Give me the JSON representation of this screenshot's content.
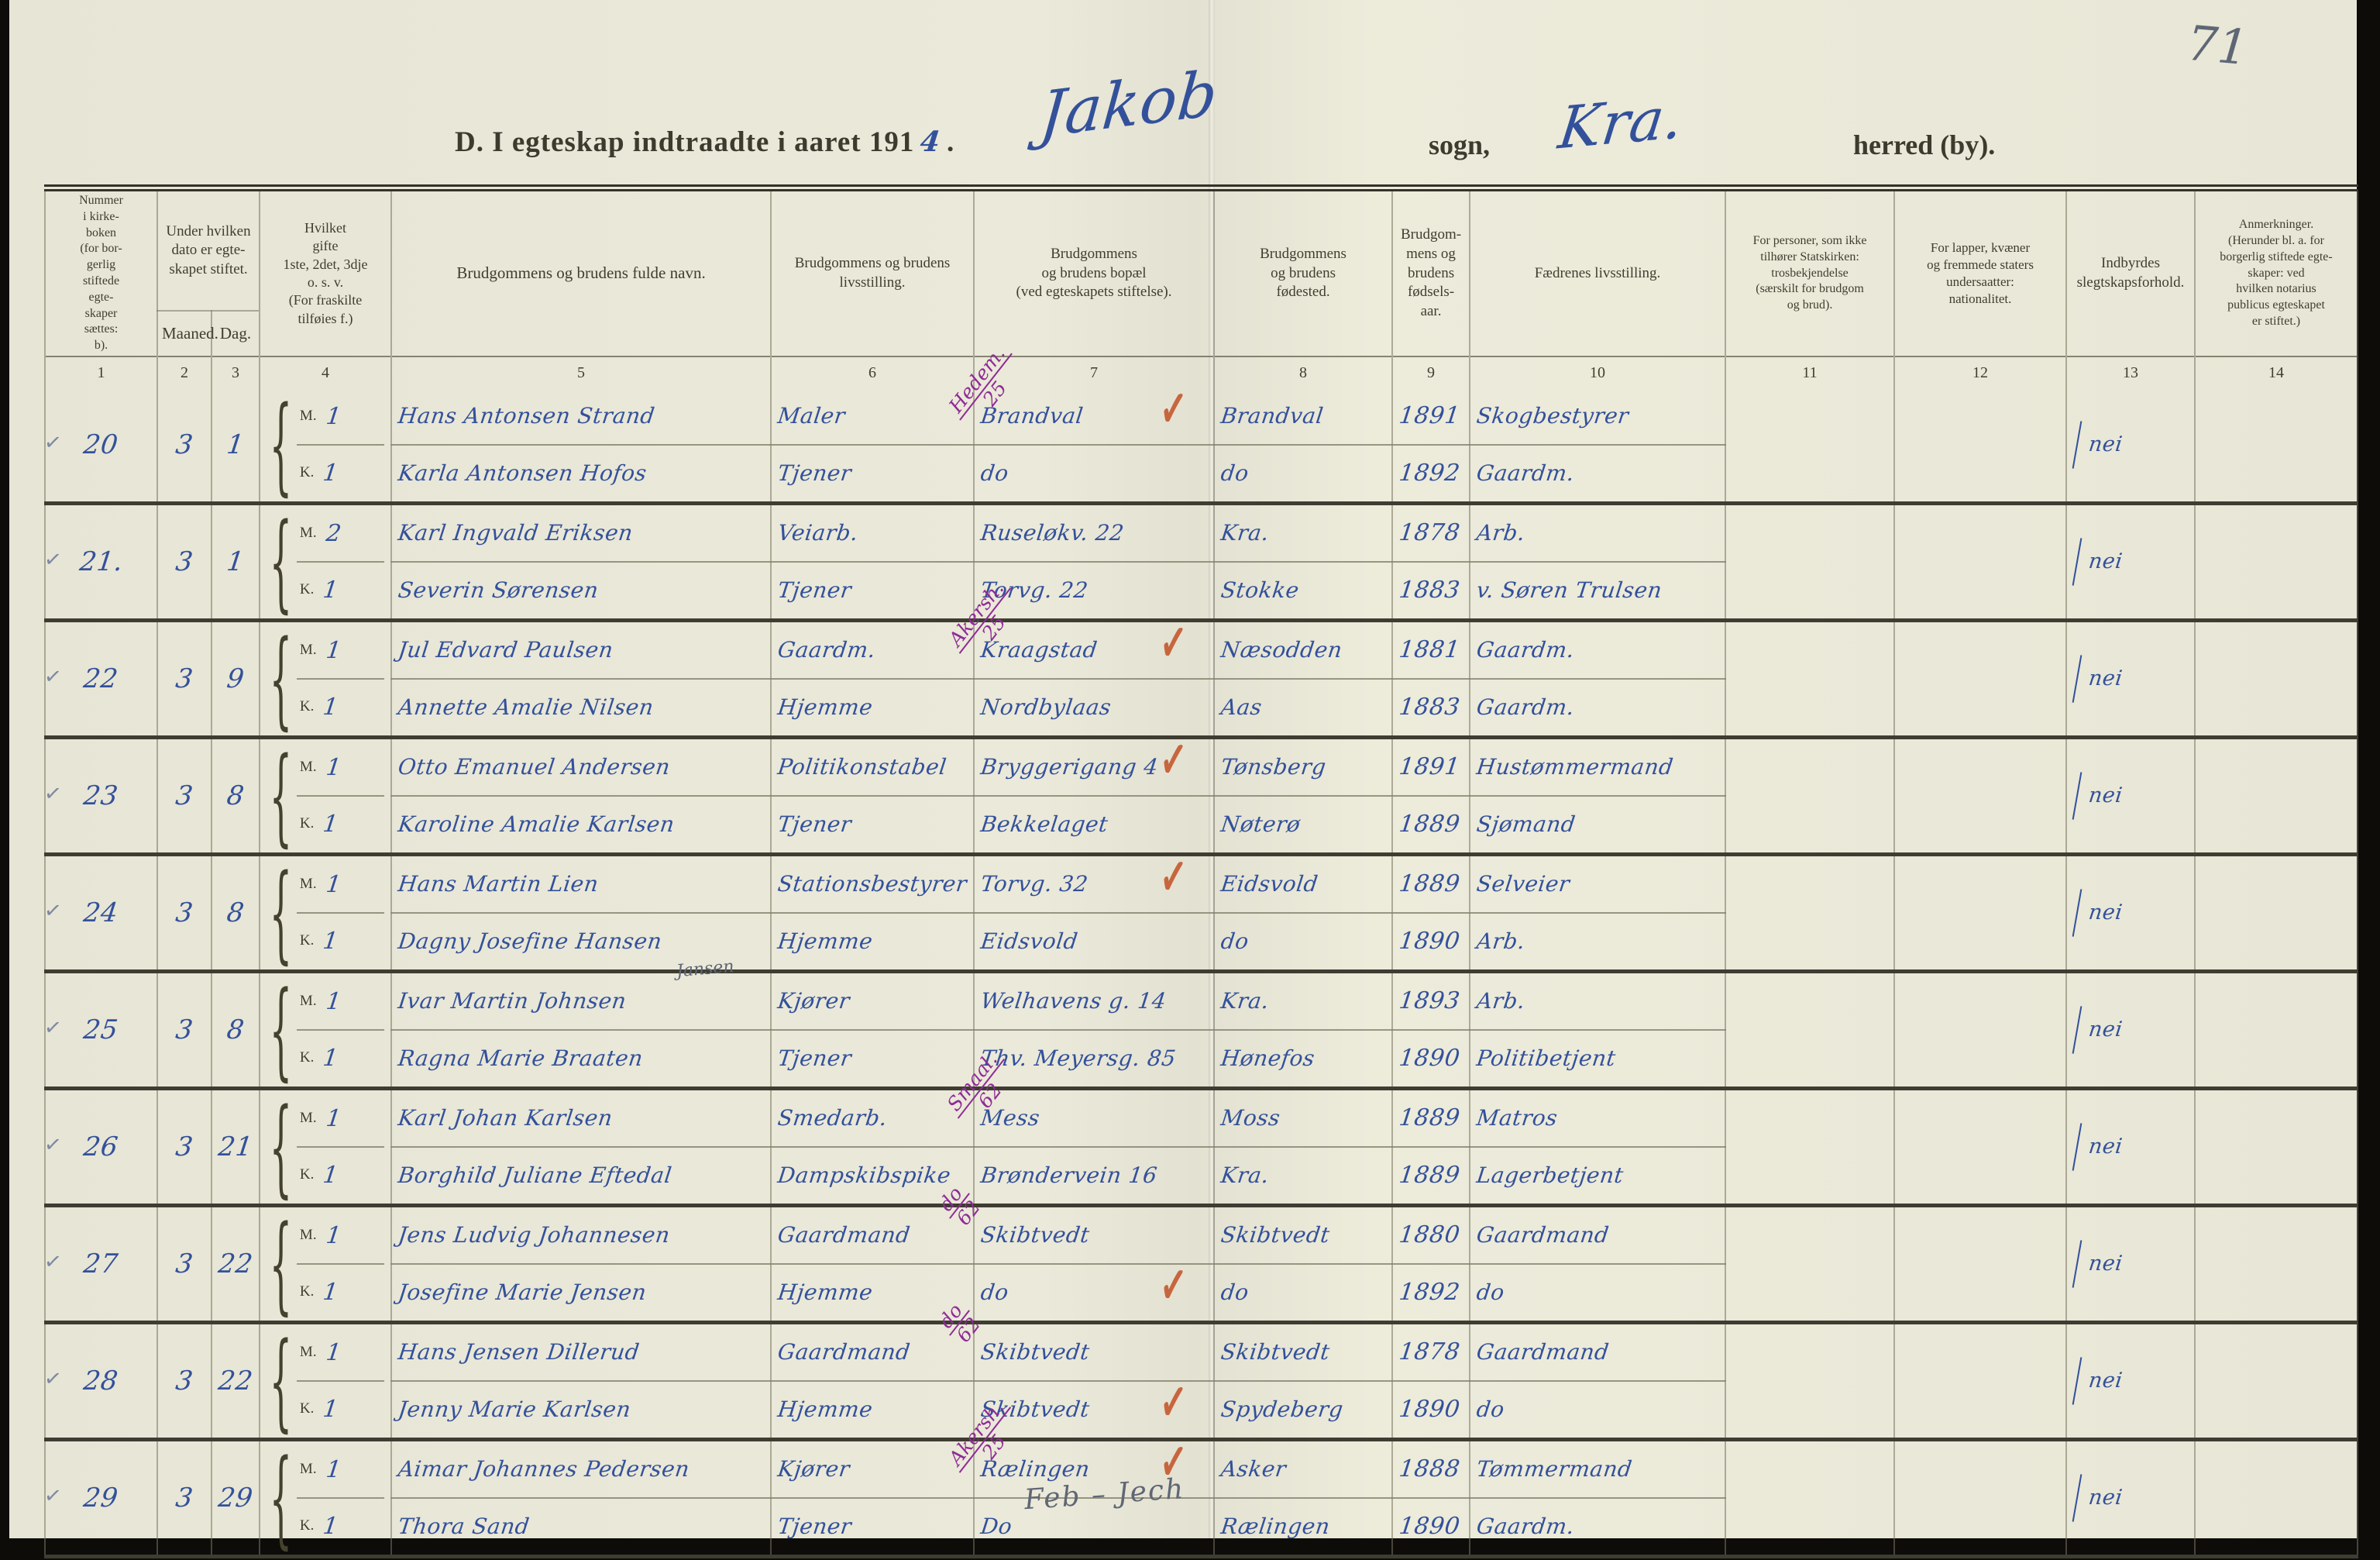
{
  "page": {
    "corner_number": "71",
    "title_prefix": "D.  I egteskap indtraadte i aaret 191",
    "title_year_hw": "4",
    "title_suffix": ".",
    "parish_hw": "Jakob",
    "sogn_label": "sogn,",
    "city_hw": "Kra.",
    "herred_label": "herred (by).",
    "bottom_pencil_note": "Feb – Jech"
  },
  "table": {
    "headers": {
      "number": "Nummer\ni kirke-\nboken\n(for bor-\ngerlig\nstiftede\negte-\nskaper\nsættes:\nb).",
      "date_group": "Under hvilken\ndato er egte-\nskapet stiftet.",
      "month": "Maaned.",
      "day": "Dag.",
      "marriage_ordinal": "Hvilket\ngifte\n1ste, 2det, 3dje\no. s. v.\n(For fraskilte\ntilføies f.)",
      "full_name": "Brudgommens og brudens fulde navn.",
      "occupation": "Brudgommens og brudens\nlivsstilling.",
      "residence": "Brudgommens\nog brudens bopæl\n(ved egteskapets stiftelse).",
      "birthplace": "Brudgommens\nog brudens\nfødested.",
      "birthyear": "Brudgom-\nmens og\nbrudens\nfødsels-\naar.",
      "fathers_occupation": "Fædrenes livsstilling.",
      "creed": "For personer, som ikke\ntilhører Statskirken:\ntrosbekjendelse\n(særskilt for brudgom\nog brud).",
      "nationality": "For lapper, kvæner\nog fremmede staters\nundersaatter:\nnationalitet.",
      "kinship": "Indbyrdes\nslegtskapsforhold.",
      "remarks": "Anmerkninger.\n(Herunder bl. a. for\nborgerlig stiftede egte-\nskaper: ved\nhvilken notarius\npublicus egteskapet\ner stiftet.)"
    },
    "column_numbers": [
      "1",
      "2",
      "3",
      "4",
      "5",
      "6",
      "7",
      "8",
      "9",
      "10",
      "11",
      "12",
      "13",
      "14"
    ],
    "m_label": "M.",
    "k_label": "K.",
    "red_check_glyph": "✓",
    "entries": [
      {
        "mark": "✓",
        "number": "20",
        "month": "3",
        "day": "1",
        "m_value": "1",
        "k_value": "1",
        "groom": {
          "name": "Hans Antonsen Strand",
          "occupation": "Maler",
          "residence": "Brandval",
          "birthplace": "Brandval",
          "birthyear": "1891",
          "father": "Skogbestyrer"
        },
        "bride": {
          "name": "Karla Antonsen Hofos",
          "occupation": "Tjener",
          "residence": "do",
          "birthplace": "do",
          "birthyear": "1892",
          "father": "Gaardm."
        },
        "kinship": "nei",
        "purple_note": [
          "Hedem.",
          "25"
        ],
        "red_check": "groom",
        "pencil_above": ""
      },
      {
        "mark": "✓",
        "number": "21.",
        "month": "3",
        "day": "1",
        "m_value": "2",
        "k_value": "1",
        "groom": {
          "name": "Karl Ingvald Eriksen",
          "occupation": "Veiarb.",
          "residence": "Ruseløkv. 22",
          "birthplace": "Kra.",
          "birthyear": "1878",
          "father": "Arb."
        },
        "bride": {
          "name": "Severin Sørensen",
          "occupation": "Tjener",
          "residence": "Torvg. 22",
          "birthplace": "Stokke",
          "birthyear": "1883",
          "father": "v. Søren Trulsen"
        },
        "kinship": "nei",
        "purple_note": [],
        "red_check": "",
        "pencil_above": ""
      },
      {
        "mark": "✓",
        "number": "22",
        "month": "3",
        "day": "9",
        "m_value": "1",
        "k_value": "1",
        "groom": {
          "name": "Jul Edvard Paulsen",
          "occupation": "Gaardm.",
          "residence": "Kraagstad",
          "birthplace": "Næsodden",
          "birthyear": "1881",
          "father": "Gaardm."
        },
        "bride": {
          "name": "Annette Amalie Nilsen",
          "occupation": "Hjemme",
          "residence": "Nordbylaas",
          "birthplace": "Aas",
          "birthyear": "1883",
          "father": "Gaardm."
        },
        "kinship": "nei",
        "purple_note": [
          "Akersh.",
          "25"
        ],
        "red_check": "groom",
        "pencil_above": ""
      },
      {
        "mark": "✓",
        "number": "23",
        "month": "3",
        "day": "8",
        "m_value": "1",
        "k_value": "1",
        "groom": {
          "name": "Otto Emanuel Andersen",
          "occupation": "Politikonstabel",
          "residence": "Bryggerigang 4",
          "birthplace": "Tønsberg",
          "birthyear": "1891",
          "father": "Hustømmermand"
        },
        "bride": {
          "name": "Karoline Amalie Karlsen",
          "occupation": "Tjener",
          "residence": "Bekkelaget",
          "birthplace": "Nøterø",
          "birthyear": "1889",
          "father": "Sjømand"
        },
        "kinship": "nei",
        "purple_note": [],
        "red_check": "groom",
        "pencil_above": ""
      },
      {
        "mark": "✓",
        "number": "24",
        "month": "3",
        "day": "8",
        "m_value": "1",
        "k_value": "1",
        "groom": {
          "name": "Hans Martin Lien",
          "occupation": "Stationsbestyrer",
          "residence": "Torvg. 32",
          "birthplace": "Eidsvold",
          "birthyear": "1889",
          "father": "Selveier"
        },
        "bride": {
          "name": "Dagny Josefine Hansen",
          "occupation": "Hjemme",
          "residence": "Eidsvold",
          "birthplace": "do",
          "birthyear": "1890",
          "father": "Arb."
        },
        "kinship": "nei",
        "purple_note": [],
        "red_check": "groom",
        "pencil_above": ""
      },
      {
        "mark": "✓",
        "number": "25",
        "month": "3",
        "day": "8",
        "m_value": "1",
        "k_value": "1",
        "groom": {
          "name": "Ivar Martin Johnsen",
          "occupation": "Kjører",
          "residence": "Welhavens g. 14",
          "birthplace": "Kra.",
          "birthyear": "1893",
          "father": "Arb."
        },
        "bride": {
          "name": "Ragna Marie Braaten",
          "occupation": "Tjener",
          "residence": "Thv. Meyersg. 85",
          "birthplace": "Hønefos",
          "birthyear": "1890",
          "father": "Politibetjent"
        },
        "kinship": "nei",
        "purple_note": [],
        "red_check": "",
        "pencil_above": "Jansen"
      },
      {
        "mark": "✓",
        "number": "26",
        "month": "3",
        "day": "21",
        "m_value": "1",
        "k_value": "1",
        "groom": {
          "name": "Karl Johan Karlsen",
          "occupation": "Smedarb.",
          "residence": "Mess",
          "birthplace": "Moss",
          "birthyear": "1889",
          "father": "Matros"
        },
        "bride": {
          "name": "Borghild Juliane Eftedal",
          "occupation": "Dampskibspike",
          "residence": "Brøndervein 16",
          "birthplace": "Kra.",
          "birthyear": "1889",
          "father": "Lagerbetjent"
        },
        "kinship": "nei",
        "purple_note": [
          "Smaal.",
          "62"
        ],
        "red_check": "",
        "pencil_above": ""
      },
      {
        "mark": "✓",
        "number": "27",
        "month": "3",
        "day": "22",
        "m_value": "1",
        "k_value": "1",
        "groom": {
          "name": "Jens Ludvig Johannesen",
          "occupation": "Gaardmand",
          "residence": "Skibtvedt",
          "birthplace": "Skibtvedt",
          "birthyear": "1880",
          "father": "Gaardmand"
        },
        "bride": {
          "name": "Josefine Marie Jensen",
          "occupation": "Hjemme",
          "residence": "do",
          "birthplace": "do",
          "birthyear": "1892",
          "father": "do"
        },
        "kinship": "nei",
        "purple_note": [
          "do",
          "62"
        ],
        "red_check": "bride",
        "pencil_above": ""
      },
      {
        "mark": "✓",
        "number": "28",
        "month": "3",
        "day": "22",
        "m_value": "1",
        "k_value": "1",
        "groom": {
          "name": "Hans Jensen Dillerud",
          "occupation": "Gaardmand",
          "residence": "Skibtvedt",
          "birthplace": "Skibtvedt",
          "birthyear": "1878",
          "father": "Gaardmand"
        },
        "bride": {
          "name": "Jenny Marie Karlsen",
          "occupation": "Hjemme",
          "residence": "Skibtvedt",
          "birthplace": "Spydeberg",
          "birthyear": "1890",
          "father": "do"
        },
        "kinship": "nei",
        "purple_note": [
          "do",
          "62"
        ],
        "red_check": "bride",
        "pencil_above": ""
      },
      {
        "mark": "✓",
        "number": "29",
        "month": "3",
        "day": "29",
        "m_value": "1",
        "k_value": "1",
        "groom": {
          "name": "Aimar Johannes Pedersen",
          "occupation": "Kjører",
          "residence": "Rælingen",
          "birthplace": "Asker",
          "birthyear": "1888",
          "father": "Tømmermand"
        },
        "bride": {
          "name": "Thora Sand",
          "occupation": "Tjener",
          "residence": "Do",
          "birthplace": "Rælingen",
          "birthyear": "1890",
          "father": "Gaardm."
        },
        "kinship": "nei",
        "purple_note": [
          "Akersh.",
          "25"
        ],
        "red_check": "groom",
        "pencil_above": ""
      }
    ]
  }
}
